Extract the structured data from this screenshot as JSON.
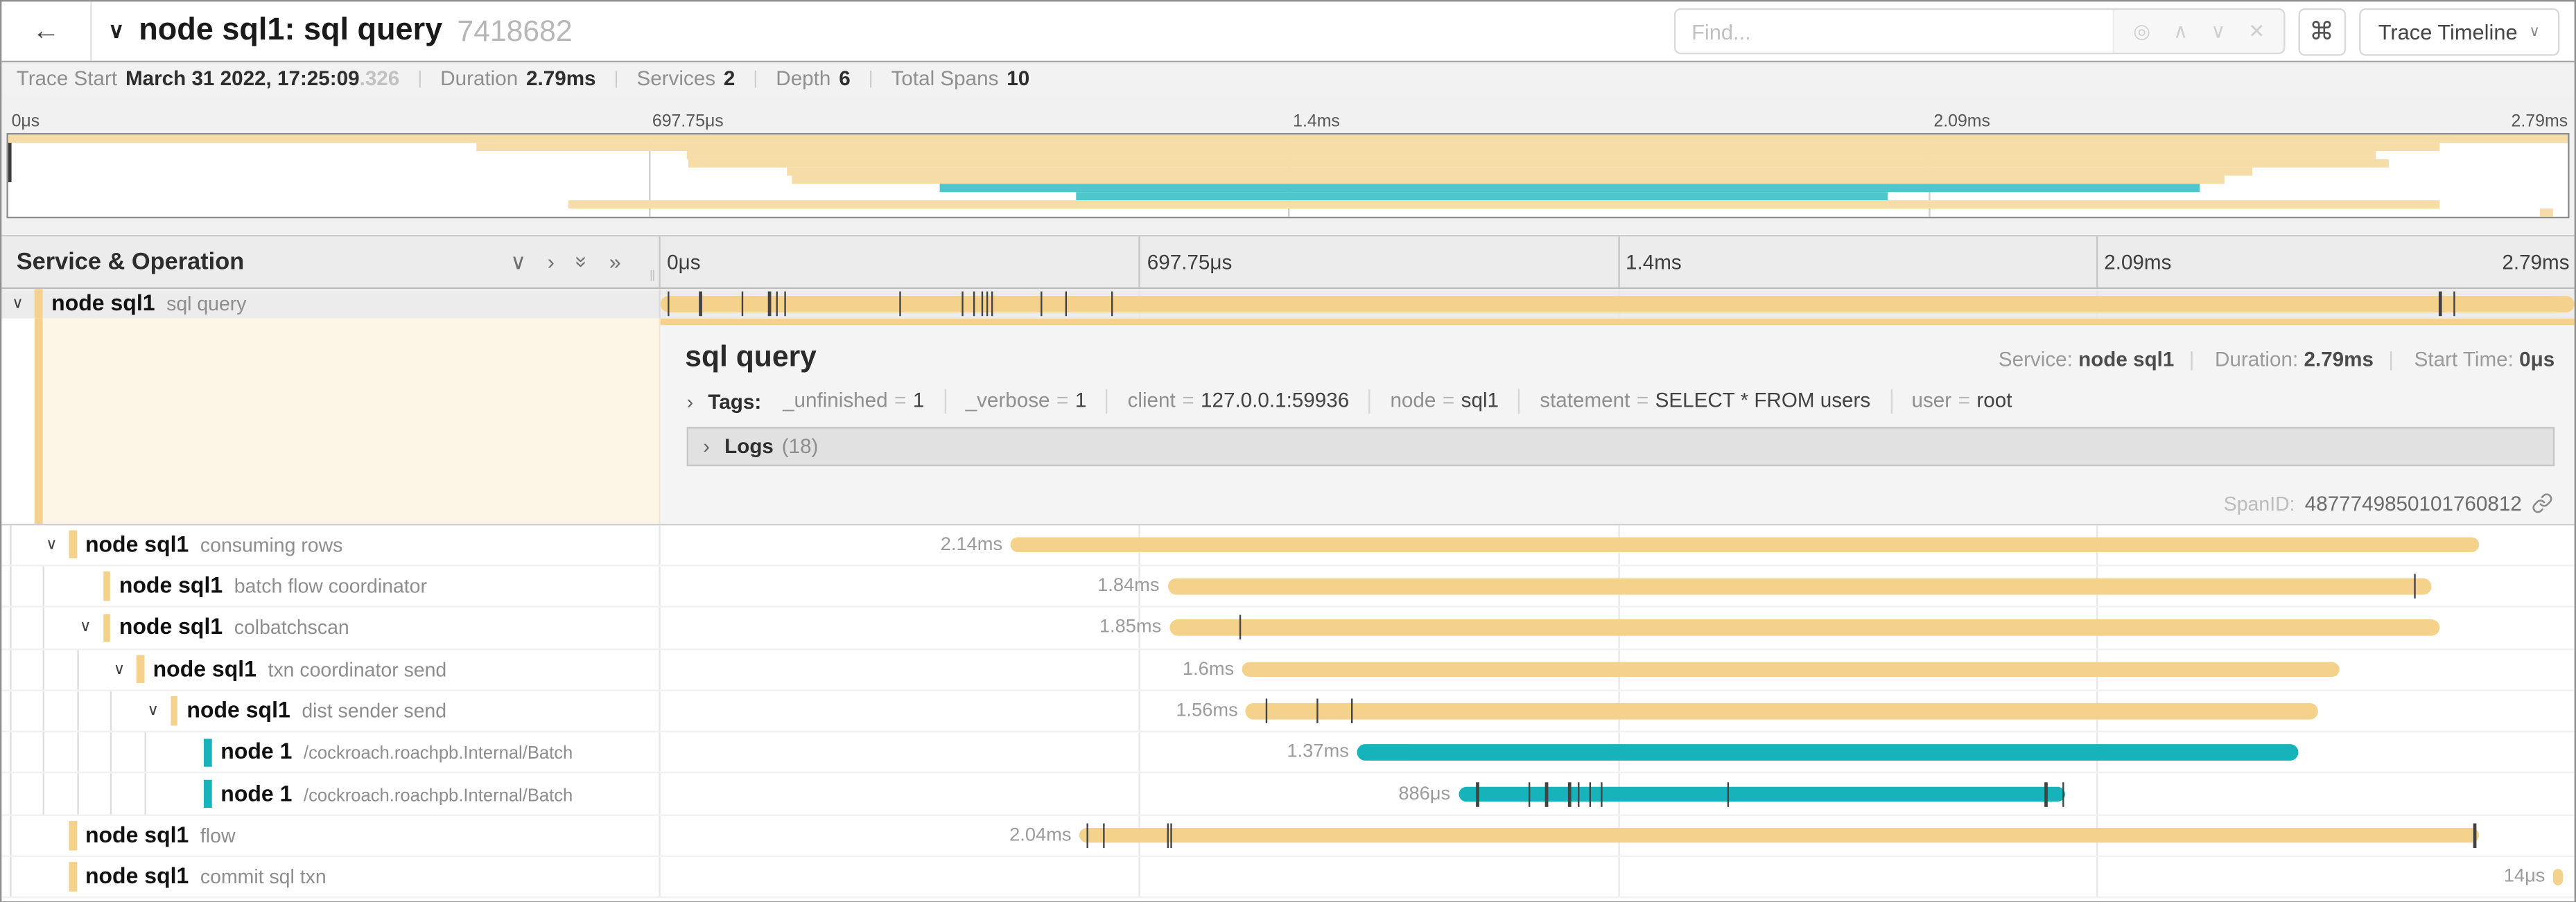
{
  "header": {
    "back_arrow": "←",
    "collapse_chevron": "∨",
    "title": "node sql1: sql query",
    "trace_id": "7418682",
    "find": {
      "placeholder": "Find...",
      "locate_icon": "◎",
      "prev_icon": "∧",
      "next_icon": "∨",
      "clear_icon": "✕"
    },
    "shortcut_button": "⌘",
    "view_button": {
      "label": "Trace Timeline",
      "chevron": "∨"
    }
  },
  "trace_info": {
    "items": [
      {
        "label": "Trace Start",
        "value": "March 31 2022, 17:25:09",
        "suffix": ".326"
      },
      {
        "label": "Duration",
        "value": "2.79ms",
        "suffix": ""
      },
      {
        "label": "Services",
        "value": "2",
        "suffix": ""
      },
      {
        "label": "Depth",
        "value": "6",
        "suffix": ""
      },
      {
        "label": "Total Spans",
        "value": "10",
        "suffix": ""
      }
    ]
  },
  "timeline_axis": {
    "ticks": [
      "0μs",
      "697.75μs",
      "1.4ms",
      "2.09ms",
      "2.79ms"
    ]
  },
  "tree_header": {
    "title": "Service & Operation",
    "collapse_one_icon": "∨",
    "expand_one_icon": "›",
    "collapse_all_icon": "»",
    "expand_all_icon": "»",
    "grip": "‖"
  },
  "colors": {
    "tan": "#F5D28C",
    "teal": "#16B3BA",
    "tan_mini": "#F6DCA6",
    "teal_mini": "#4FC6CB"
  },
  "minimap": {
    "rows": [
      {
        "s": 0.0,
        "e": 1.0,
        "c": "tan_mini"
      },
      {
        "s": 0.183,
        "e": 0.95,
        "c": "tan_mini"
      },
      {
        "s": 0.265,
        "e": 0.925,
        "c": "tan_mini"
      },
      {
        "s": 0.266,
        "e": 0.93,
        "c": "tan_mini"
      },
      {
        "s": 0.304,
        "e": 0.877,
        "c": "tan_mini"
      },
      {
        "s": 0.306,
        "e": 0.866,
        "c": "tan_mini"
      },
      {
        "s": 0.364,
        "e": 0.856,
        "c": "teal_mini"
      },
      {
        "s": 0.417,
        "e": 0.734,
        "c": "teal_mini"
      },
      {
        "s": 0.219,
        "e": 0.95,
        "c": "tan_mini"
      },
      {
        "s": 0.989,
        "e": 0.994,
        "c": "tan_mini"
      }
    ]
  },
  "spans": [
    {
      "service": "node sql1",
      "operation": "sql query",
      "depth": 0,
      "color": "tan",
      "expandable": true,
      "selected": true,
      "small_op": false,
      "bar": {
        "s": 0.0,
        "e": 1.0,
        "label": "",
        "ticks": [
          0.004,
          0.021,
          0.043,
          0.057,
          0.061,
          0.065,
          0.125,
          0.158,
          0.164,
          0.168,
          0.171,
          0.173,
          0.199,
          0.212,
          0.236,
          0.93,
          0.937
        ]
      }
    },
    {
      "service": "node sql1",
      "operation": "consuming rows",
      "depth": 1,
      "color": "tan",
      "expandable": true,
      "selected": false,
      "small_op": false,
      "bar": {
        "s": 0.183,
        "e": 0.95,
        "label": "2.14ms",
        "ticks": []
      }
    },
    {
      "service": "node sql1",
      "operation": "batch flow coordinator",
      "depth": 2,
      "color": "tan",
      "expandable": false,
      "selected": false,
      "small_op": false,
      "bar": {
        "s": 0.265,
        "e": 0.925,
        "label": "1.84ms",
        "ticks": [
          0.917
        ]
      }
    },
    {
      "service": "node sql1",
      "operation": "colbatchscan",
      "depth": 2,
      "color": "tan",
      "expandable": true,
      "selected": false,
      "small_op": false,
      "bar": {
        "s": 0.266,
        "e": 0.93,
        "label": "1.85ms",
        "ticks": [
          0.303
        ]
      }
    },
    {
      "service": "node sql1",
      "operation": "txn coordinator send",
      "depth": 3,
      "color": "tan",
      "expandable": true,
      "selected": false,
      "small_op": false,
      "bar": {
        "s": 0.304,
        "e": 0.877,
        "label": "1.6ms",
        "ticks": []
      }
    },
    {
      "service": "node sql1",
      "operation": "dist sender send",
      "depth": 4,
      "color": "tan",
      "expandable": true,
      "selected": false,
      "small_op": false,
      "bar": {
        "s": 0.306,
        "e": 0.866,
        "label": "1.56ms",
        "ticks": [
          0.317,
          0.343,
          0.361
        ]
      }
    },
    {
      "service": "node 1",
      "operation": "/cockroach.roachpb.Internal/Batch",
      "depth": 5,
      "color": "teal",
      "expandable": false,
      "selected": false,
      "small_op": true,
      "bar": {
        "s": 0.364,
        "e": 0.856,
        "label": "1.37ms",
        "ticks": []
      }
    },
    {
      "service": "node 1",
      "operation": "/cockroach.roachpb.Internal/Batch",
      "depth": 5,
      "color": "teal",
      "expandable": false,
      "selected": false,
      "small_op": true,
      "bar": {
        "s": 0.417,
        "e": 0.734,
        "label": "886μs",
        "ticks": [
          0.427,
          0.454,
          0.463,
          0.475,
          0.48,
          0.486,
          0.492,
          0.558,
          0.724,
          0.733
        ]
      }
    },
    {
      "service": "node sql1",
      "operation": "flow",
      "depth": 1,
      "color": "tan",
      "expandable": false,
      "selected": false,
      "small_op": false,
      "bar": {
        "s": 0.219,
        "e": 0.95,
        "label": "2.04ms",
        "ticks": [
          0.223,
          0.232,
          0.265,
          0.267,
          0.948
        ]
      }
    },
    {
      "service": "node sql1",
      "operation": "commit sql txn",
      "depth": 1,
      "color": "tan",
      "expandable": false,
      "selected": false,
      "small_op": false,
      "bar": {
        "s": 0.989,
        "e": 0.994,
        "label": "14μs",
        "ticks": []
      }
    }
  ],
  "detail": {
    "title": "sql query",
    "service_label": "Service:",
    "service": "node sql1",
    "duration_label": "Duration:",
    "duration": "2.79ms",
    "start_time_label": "Start Time:",
    "start_time": "0μs",
    "tags_chevron": "›",
    "tags_label": "Tags:",
    "tags": [
      {
        "key": "_unfinished",
        "value": "1"
      },
      {
        "key": "_verbose",
        "value": "1"
      },
      {
        "key": "client",
        "value": "127.0.0.1:59936"
      },
      {
        "key": "node",
        "value": "sql1"
      },
      {
        "key": "statement",
        "value": "SELECT * FROM users"
      },
      {
        "key": "user",
        "value": "root"
      }
    ],
    "logs_chevron": "›",
    "logs_label": "Logs",
    "logs_count": "(18)",
    "span_id_label": "SpanID:",
    "span_id": "4877749850101760812"
  }
}
